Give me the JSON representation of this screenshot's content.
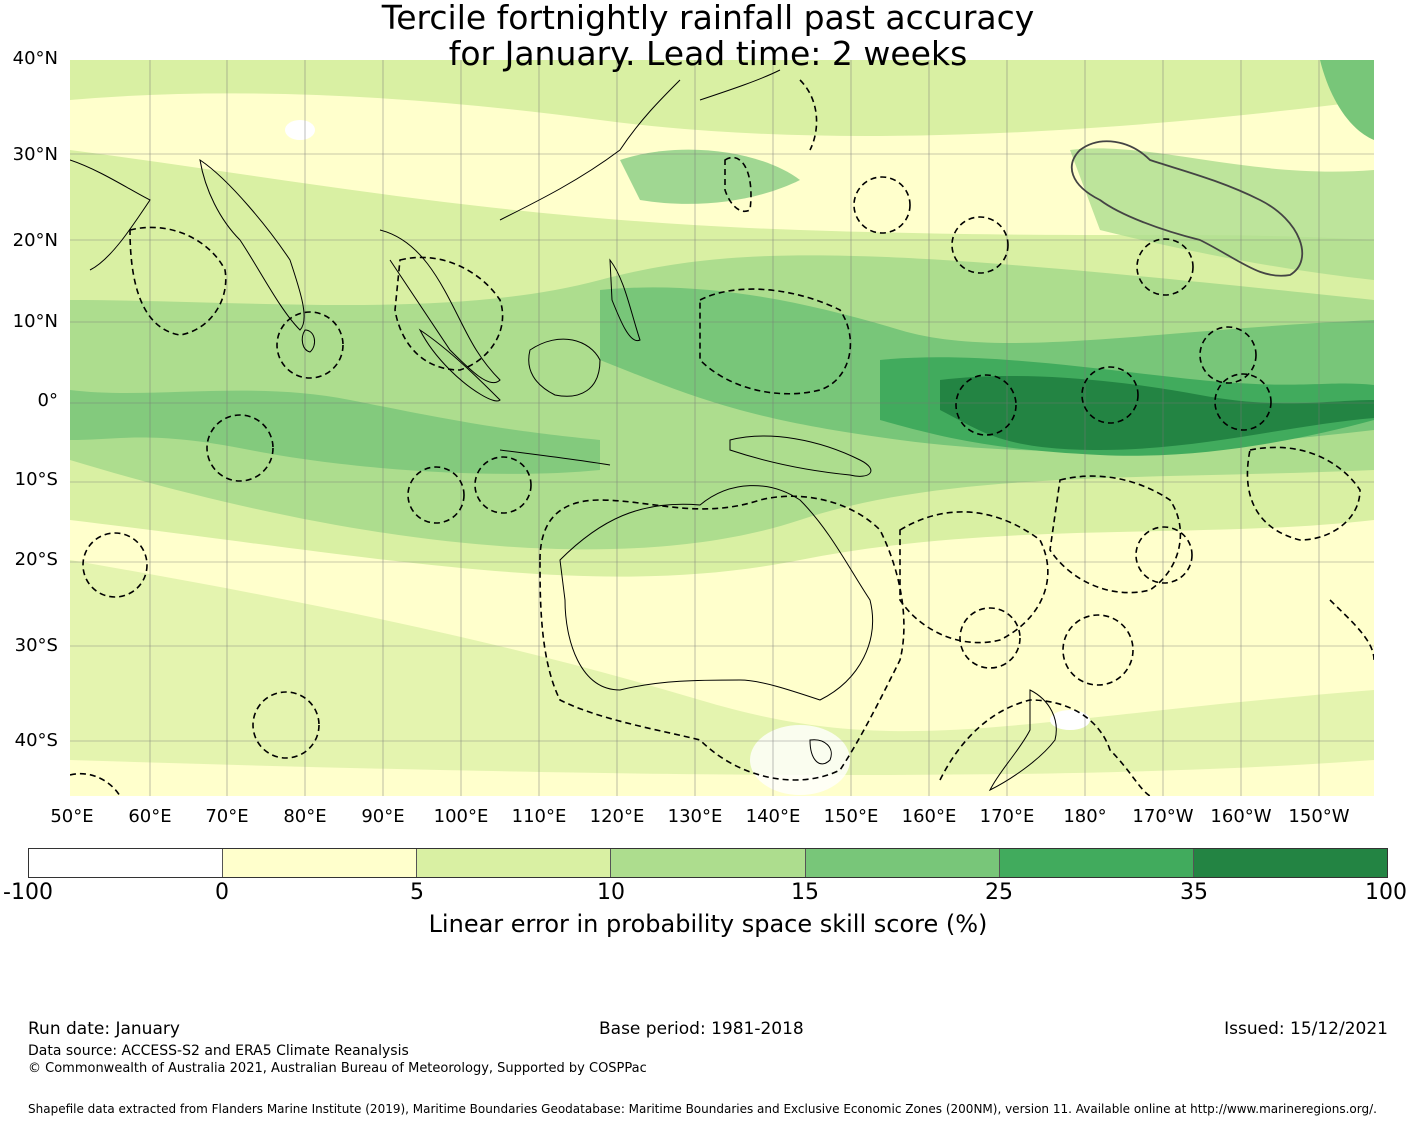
{
  "title_line1": "Tercile fortnightly rainfall past accuracy",
  "title_line2": "for January. Lead time: 2 weeks",
  "lat_labels": [
    "40°N",
    "30°N",
    "20°N",
    "10°N",
    "0°",
    "10°S",
    "20°S",
    "30°S",
    "40°S"
  ],
  "lon_labels": [
    "50°E",
    "60°E",
    "70°E",
    "80°E",
    "90°E",
    "100°E",
    "110°E",
    "120°E",
    "130°E",
    "140°E",
    "150°E",
    "160°E",
    "170°E",
    "180°",
    "170°W",
    "160°W",
    "150°W"
  ],
  "colorbar": {
    "ticks": [
      "-100",
      "0",
      "5",
      "10",
      "15",
      "25",
      "35",
      "100"
    ],
    "colors": [
      "#ffffff",
      "#ffffcc",
      "#d9f0a3",
      "#addd8e",
      "#78c679",
      "#41ab5d",
      "#238443"
    ],
    "label": "Linear error in probability space skill score (%)"
  },
  "footer": {
    "run_date": "Run date: January",
    "base_period": "Base period: 1981-2018",
    "issued": "Issued: 15/12/2021",
    "data_source": "Data source: ACCESS-S2 and ERA5 Climate Reanalysis",
    "copyright": "© Commonwealth of Australia 2021, Australian Bureau of Meteorology, Supported by COSPPac",
    "shapefile": "Shapefile data extracted from Flanders Marine Institute (2019), Maritime Boundaries Geodatabase: Maritime Boundaries and Exclusive Economic Zones (200NM), version 11. Available online at http://www.marineregions.org/."
  }
}
